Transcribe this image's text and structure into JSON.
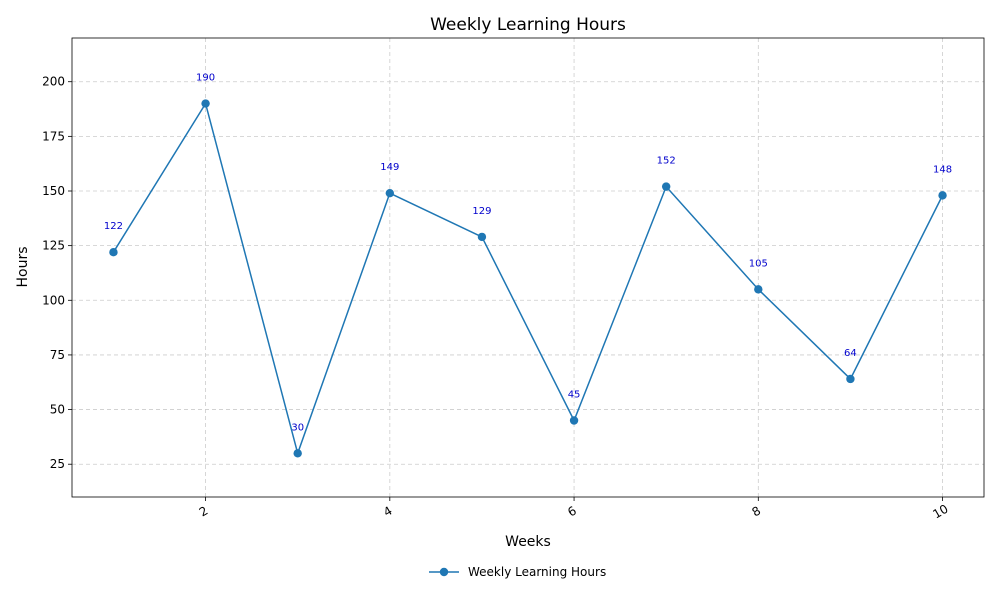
{
  "chart_data": {
    "type": "line",
    "title": "Weekly Learning Hours",
    "xlabel": "Weeks",
    "ylabel": "Hours",
    "x": [
      1,
      2,
      3,
      4,
      5,
      6,
      7,
      8,
      9,
      10
    ],
    "series": [
      {
        "name": "Weekly Learning Hours",
        "color": "#1f77b4",
        "values": [
          122,
          190,
          30,
          149,
          129,
          45,
          152,
          105,
          64,
          148
        ]
      }
    ],
    "xlim": [
      0.55,
      10.45
    ],
    "ylim": [
      10,
      220
    ],
    "xticks": [
      2,
      4,
      6,
      8,
      10
    ],
    "yticks": [
      25,
      50,
      75,
      100,
      125,
      150,
      175,
      200
    ],
    "grid": true,
    "legend_position": "bottom-center",
    "data_label_color": "#0000cc",
    "xtick_rotation": "rotated"
  }
}
